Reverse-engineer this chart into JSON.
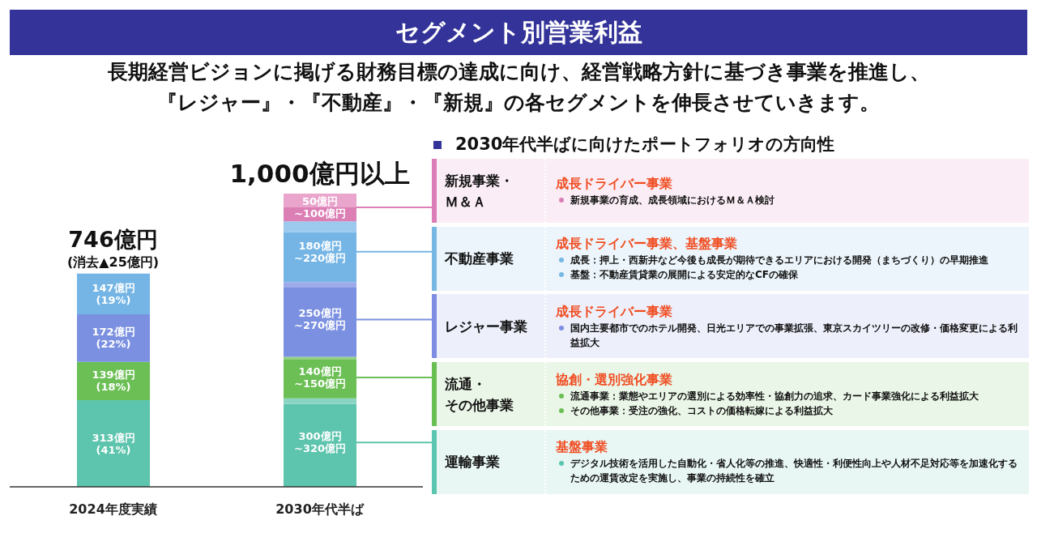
{
  "chart_data": [
    {
      "type": "bar",
      "title": "セグメント別営業利益",
      "subtitle": "長期経営ビジョンに掲げる財務目標の達成に向け、経営戦略方針に基づき事業を推進し、『レジャー』・『不動産』・『新規』の各セグメントを伸長させていきます。",
      "stacked": true,
      "categories": [
        "2024年度実績",
        "2030年代半ば"
      ],
      "series": [
        {
          "color": "#5dc4ad",
          "values": [
            313,
            300
          ],
          "value_labels": [
            "313億円\n(41%)",
            "300億円\n~320億円"
          ]
        },
        {
          "color": "#8ad4c4",
          "values": [
            null,
            20
          ]
        },
        {
          "color": "#6cbf55",
          "values": [
            139,
            140
          ],
          "value_labels": [
            "139億円\n(18%)",
            "140億円\n~150億円"
          ]
        },
        {
          "color": "#93d183",
          "values": [
            null,
            10
          ]
        },
        {
          "color": "#7b90e0",
          "values": [
            172,
            250
          ],
          "value_labels": [
            "172億円\n(22%)",
            "250億円\n~270億円"
          ]
        },
        {
          "color": "#9eabea",
          "values": [
            null,
            20
          ]
        },
        {
          "color": "#74b5e5",
          "values": [
            147,
            180
          ],
          "value_labels": [
            "147億円\n(19%)",
            "180億円\n~220億円"
          ]
        },
        {
          "color": "#9cc9ee",
          "values": [
            null,
            40
          ]
        },
        {
          "color": "#dc7fb5",
          "values": [
            null,
            50
          ],
          "value_labels": [
            null,
            "50億円\n~100億円"
          ]
        },
        {
          "color": "#e9a5cc",
          "values": [
            null,
            50
          ]
        }
      ],
      "totals": [
        "746億円\n(消去▲25億円)",
        null
      ],
      "annotations": [
        {
          "text": "1,000億円以上",
          "x": "2030年代半ば",
          "y": 1060
        }
      ]
    },
    {
      "type": "other",
      "title": "2030年代半ばに向けたポートフォリオの方向性"
    },
    {
      "type": "other",
      "title": "新規事業・Ｍ＆Ａ",
      "subtitle": "成長ドライバー事業",
      "color": "#faedf5",
      "annotations": [
        "新規事業の育成、成長領域におけるＭ＆Ａ検討"
      ]
    },
    {
      "type": "other",
      "title": "不動産事業",
      "subtitle": "成長ドライバー事業、基盤事業",
      "color": "#ecf5fb",
      "annotations": [
        "成長：押上・西新井など今後も成長が期待できるエリアにおける開発（まちづくり）の早期推進",
        "基盤：不動産賃貸業の展開による安定的なCFの確保"
      ]
    },
    {
      "type": "other",
      "title": "レジャー事業",
      "subtitle": "成長ドライバー事業",
      "color": "#edeffb",
      "annotations": [
        "国内主要都市でのホテル開発、日光エリアでの事業拡張、東京スカイツリーの改修・価格変更による利益拡大"
      ]
    },
    {
      "type": "other",
      "title": "流通・その他事業",
      "subtitle": "協創・選別強化事業",
      "color": "#eaf6e7",
      "annotations": [
        "流通事業：業態やエリアの選別による効率性・協創力の追求、カード事業強化による利益拡大",
        "その他事業：受注の強化、コストの価格転嫁による利益拡大"
      ]
    },
    {
      "type": "other",
      "title": "運輸事業",
      "subtitle": "基盤事業",
      "color": "#e8f7f4",
      "annotations": [
        "デジタル技術を活用した自動化・省人化等の推進、快適性・利便性向上や人材不足対応等を加速化するための運賃改定を実施し、事業の持続性を確立"
      ]
    }
  ]
}
